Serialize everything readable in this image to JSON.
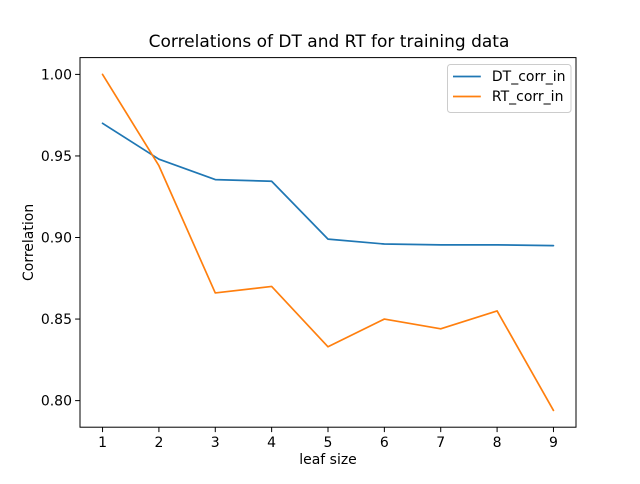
{
  "chart_data": {
    "type": "line",
    "title": "Correlations of DT and RT for training data",
    "xlabel": "leaf size",
    "ylabel": "Correlation",
    "x": [
      1,
      2,
      3,
      4,
      5,
      6,
      7,
      8,
      9
    ],
    "series": [
      {
        "name": "DT_corr_in",
        "color": "#1f77b4",
        "values": [
          0.97,
          0.948,
          0.9355,
          0.9345,
          0.899,
          0.896,
          0.8955,
          0.8955,
          0.895
        ]
      },
      {
        "name": "RT_corr_in",
        "color": "#ff7f0e",
        "values": [
          1.0,
          0.944,
          0.866,
          0.87,
          0.833,
          0.85,
          0.844,
          0.855,
          0.794
        ]
      }
    ],
    "xlim": [
      0.6,
      9.4
    ],
    "ylim": [
      0.7837,
      1.0103
    ],
    "xticks": [
      1,
      2,
      3,
      4,
      5,
      6,
      7,
      8,
      9
    ],
    "xtick_labels": [
      "1",
      "2",
      "3",
      "4",
      "5",
      "6",
      "7",
      "8",
      "9"
    ],
    "yticks": [
      0.8,
      0.85,
      0.9,
      0.95,
      1.0
    ],
    "ytick_labels": [
      "0.80",
      "0.85",
      "0.90",
      "0.95",
      "1.00"
    ],
    "grid": false,
    "legend": {
      "position": "upper right",
      "entries": [
        "DT_corr_in",
        "RT_corr_in"
      ]
    },
    "colors": {
      "spine": "#000000",
      "tick": "#000000",
      "legend_border": "#cccccc",
      "legend_background": "#ffffff"
    }
  }
}
